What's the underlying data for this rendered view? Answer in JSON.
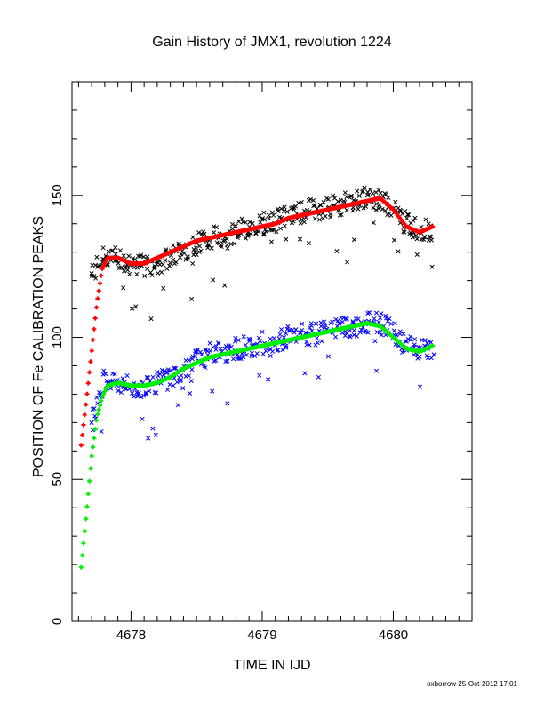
{
  "chart_data": {
    "type": "scatter",
    "title": "Gain History of JMX1, revolution 1224",
    "xlabel": "TIME IN IJD",
    "ylabel": "POSITION OF Fe CALIBRATION PEAKS",
    "xlim": [
      4677.55,
      4680.6
    ],
    "ylim": [
      0,
      190
    ],
    "x_ticks": [
      4678,
      4679,
      4680
    ],
    "x_tick_labels": [
      "4678",
      "4679",
      "4680"
    ],
    "y_ticks": [
      0,
      50,
      100,
      150
    ],
    "y_tick_labels": [
      "0",
      "50",
      "100",
      "150"
    ],
    "grid": false,
    "footer": "oxborrow 25-Oct-2012 17:01",
    "series": [
      {
        "name": "upper calibration peak (data)",
        "marker": "x",
        "color": "#000000",
        "x": [
          4677.7,
          4677.8,
          4677.9,
          4678.0,
          4678.1,
          4678.2,
          4678.3,
          4678.4,
          4678.5,
          4678.6,
          4678.7,
          4678.8,
          4678.9,
          4679.0,
          4679.1,
          4679.2,
          4679.3,
          4679.4,
          4679.5,
          4679.6,
          4679.7,
          4679.8,
          4679.9,
          4680.0,
          4680.1,
          4680.2,
          4680.3
        ],
        "y": [
          122,
          129,
          128,
          126,
          125,
          126,
          128,
          131,
          133,
          135,
          136,
          137,
          139,
          140,
          141,
          143,
          144,
          145,
          146,
          147,
          148,
          149,
          148,
          145,
          140,
          138,
          138
        ]
      },
      {
        "name": "upper calibration peak (fit)",
        "marker": "+",
        "color": "#ff0000",
        "x": [
          4677.62,
          4677.66,
          4677.7,
          4677.74,
          4677.78,
          4677.82,
          4677.9,
          4678.0,
          4678.1,
          4678.2,
          4678.3,
          4678.4,
          4678.5,
          4678.6,
          4678.7,
          4678.8,
          4678.9,
          4679.0,
          4679.1,
          4679.2,
          4679.3,
          4679.4,
          4679.5,
          4679.6,
          4679.7,
          4679.8,
          4679.9,
          4680.0,
          4680.1,
          4680.2,
          4680.3
        ],
        "y": [
          62,
          78,
          95,
          112,
          124,
          128,
          128,
          126,
          126,
          128,
          130,
          132,
          134,
          135,
          136,
          137,
          138,
          139,
          140,
          142,
          143,
          144,
          145,
          146,
          147,
          148,
          149,
          145,
          139,
          137,
          139
        ]
      },
      {
        "name": "lower calibration peak (data)",
        "marker": "x",
        "color": "#0000ff",
        "x": [
          4677.7,
          4677.8,
          4677.9,
          4678.0,
          4678.1,
          4678.2,
          4678.3,
          4678.4,
          4678.5,
          4678.6,
          4678.7,
          4678.8,
          4678.9,
          4679.0,
          4679.1,
          4679.2,
          4679.3,
          4679.4,
          4679.5,
          4679.6,
          4679.7,
          4679.8,
          4679.9,
          4680.0,
          4680.1,
          4680.2,
          4680.3
        ],
        "y": [
          70,
          86,
          84,
          82,
          83,
          84,
          86,
          89,
          92,
          94,
          95,
          96,
          97,
          98,
          99,
          100,
          101,
          101,
          102,
          103,
          103,
          105,
          105,
          102,
          97,
          96,
          95
        ]
      },
      {
        "name": "lower calibration peak (fit)",
        "marker": "+",
        "color": "#00ee00",
        "x": [
          4677.62,
          4677.66,
          4677.7,
          4677.74,
          4677.78,
          4677.82,
          4677.9,
          4678.0,
          4678.1,
          4678.2,
          4678.3,
          4678.4,
          4678.5,
          4678.6,
          4678.7,
          4678.8,
          4678.9,
          4679.0,
          4679.1,
          4679.2,
          4679.3,
          4679.4,
          4679.5,
          4679.6,
          4679.7,
          4679.8,
          4679.9,
          4680.0,
          4680.1,
          4680.2,
          4680.3
        ],
        "y": [
          19,
          38,
          58,
          72,
          79,
          83,
          84,
          83,
          83,
          84,
          86,
          89,
          91,
          93,
          94,
          95,
          96,
          97,
          98,
          99,
          100,
          101,
          102,
          103,
          104,
          105,
          104,
          100,
          96,
          95,
          97
        ]
      }
    ]
  }
}
